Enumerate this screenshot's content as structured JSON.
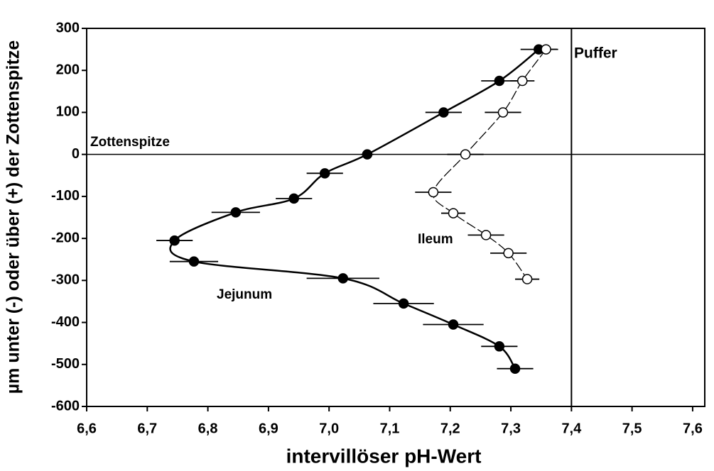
{
  "chart_data": {
    "type": "scatter",
    "x_label": "intervillöser pH-Wert",
    "y_label": "µm unter (-) oder über (+) der Zottenspitze",
    "annotations": [
      "Puffer",
      "Zottenspitze"
    ],
    "xlim": [
      6.6,
      7.62
    ],
    "ylim": [
      -600,
      300
    ],
    "xticks": [
      {
        "value": 6.6,
        "label": "6,6"
      },
      {
        "value": 6.7,
        "label": "6,7"
      },
      {
        "value": 6.8,
        "label": "6,8"
      },
      {
        "value": 6.9,
        "label": "6,9"
      },
      {
        "value": 7.0,
        "label": "7,0"
      },
      {
        "value": 7.1,
        "label": "7,1"
      },
      {
        "value": 7.2,
        "label": "7,2"
      },
      {
        "value": 7.3,
        "label": "7,3"
      },
      {
        "value": 7.4,
        "label": "7,4"
      },
      {
        "value": 7.5,
        "label": "7,5"
      },
      {
        "value": 7.6,
        "label": "7,6"
      }
    ],
    "yticks": [
      -600,
      -500,
      -400,
      -300,
      -200,
      -100,
      0,
      100,
      200,
      300
    ],
    "xref": 7.4,
    "yref": 0,
    "series": [
      {
        "name": "Jejunum",
        "color": "#000000",
        "filled": true,
        "x": [
          7.346,
          7.281,
          7.189,
          7.063,
          6.993,
          6.942,
          6.846,
          6.745,
          6.777,
          7.023,
          7.123,
          7.205,
          7.281,
          7.307
        ],
        "y": [
          250,
          175,
          100,
          0,
          -45,
          -105,
          -138,
          -205,
          -255,
          -295,
          -355,
          -405,
          -457,
          -510
        ],
        "xerr": [
          0.03,
          0.03,
          0.03,
          0.01,
          0.03,
          0.03,
          0.04,
          0.03,
          0.04,
          0.06,
          0.05,
          0.05,
          0.03,
          0.03
        ]
      },
      {
        "name": "Ileum",
        "color": "#000000",
        "filled": false,
        "x": [
          7.358,
          7.319,
          7.287,
          7.225,
          7.172,
          7.205,
          7.259,
          7.296,
          7.327
        ],
        "y": [
          250,
          175,
          100,
          0,
          -90,
          -140,
          -192,
          -235,
          -297
        ],
        "xerr": [
          0.02,
          0.02,
          0.03,
          0.03,
          0.03,
          0.02,
          0.03,
          0.03,
          0.02
        ]
      }
    ]
  }
}
